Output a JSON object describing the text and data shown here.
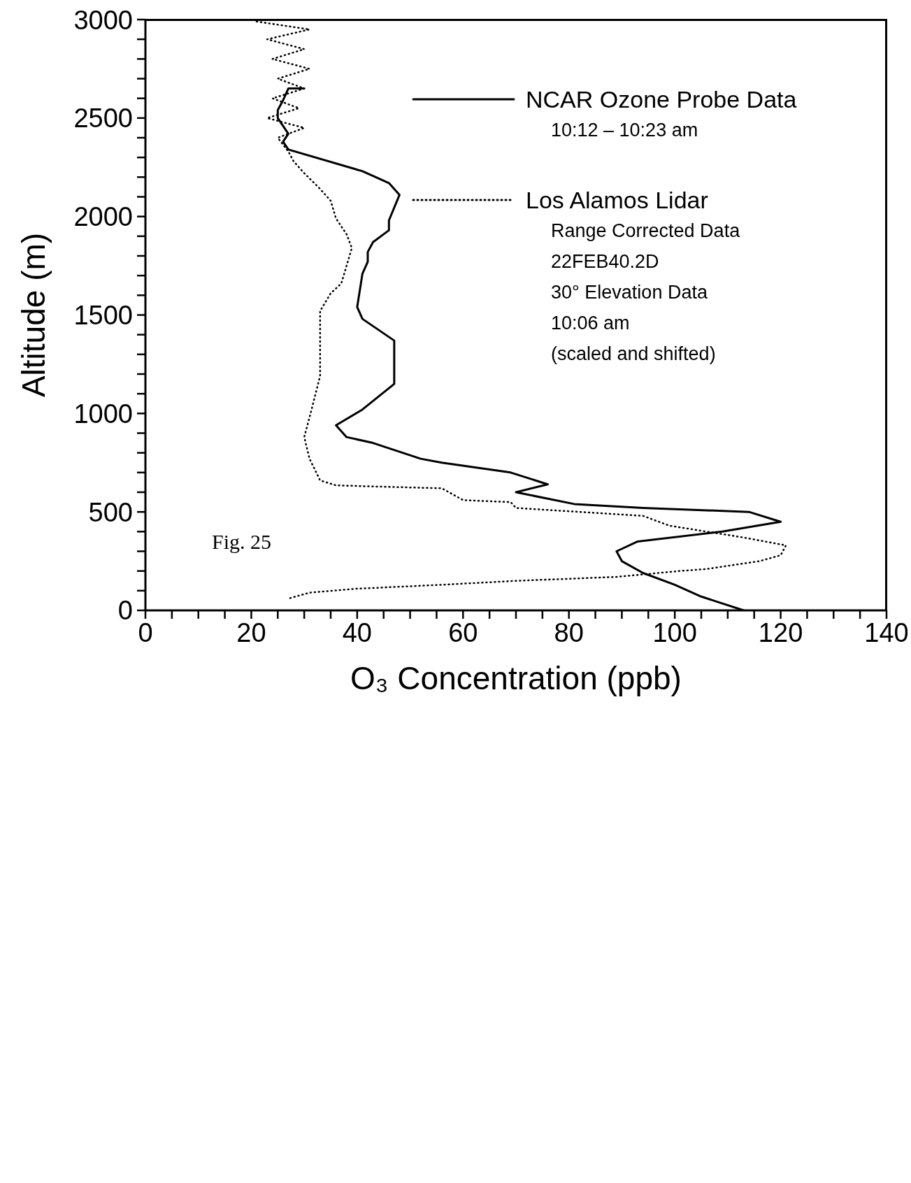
{
  "chart_data": {
    "type": "line",
    "xlabel": "O₃ Concentration (ppb)",
    "ylabel": "Altitude (m)",
    "xlim": [
      0,
      140
    ],
    "ylim": [
      0,
      3000
    ],
    "xticks": [
      0,
      {
        "value": 5,
        "label": null
      },
      {
        "value": 10,
        "label": null
      },
      {
        "value": 15,
        "label": null
      },
      20,
      {
        "value": 25,
        "label": null
      },
      {
        "value": 30,
        "label": null
      },
      {
        "value": 35,
        "label": null
      },
      40,
      {
        "value": 45,
        "label": null
      },
      {
        "value": 50,
        "label": null
      },
      {
        "value": 55,
        "label": null
      },
      60,
      {
        "value": 65,
        "label": null
      },
      {
        "value": 70,
        "label": null
      },
      {
        "value": 75,
        "label": null
      },
      80,
      {
        "value": 85,
        "label": null
      },
      {
        "value": 90,
        "label": null
      },
      {
        "value": 95,
        "label": null
      },
      100,
      {
        "value": 105,
        "label": null
      },
      {
        "value": 110,
        "label": null
      },
      {
        "value": 115,
        "label": null
      },
      120,
      {
        "value": 125,
        "label": null
      },
      {
        "value": 130,
        "label": null
      },
      {
        "value": 135,
        "label": null
      },
      140
    ],
    "yticks": [
      0,
      {
        "value": 100,
        "label": null
      },
      {
        "value": 200,
        "label": null
      },
      {
        "value": 300,
        "label": null
      },
      {
        "value": 400,
        "label": null
      },
      500,
      {
        "value": 600,
        "label": null
      },
      {
        "value": 700,
        "label": null
      },
      {
        "value": 800,
        "label": null
      },
      {
        "value": 900,
        "label": null
      },
      1000,
      {
        "value": 1100,
        "label": null
      },
      {
        "value": 1200,
        "label": null
      },
      {
        "value": 1300,
        "label": null
      },
      {
        "value": 1400,
        "label": null
      },
      1500,
      {
        "value": 1600,
        "label": null
      },
      {
        "value": 1700,
        "label": null
      },
      {
        "value": 1800,
        "label": null
      },
      {
        "value": 1900,
        "label": null
      },
      2000,
      {
        "value": 2100,
        "label": null
      },
      {
        "value": 2200,
        "label": null
      },
      {
        "value": 2300,
        "label": null
      },
      {
        "value": 2400,
        "label": null
      },
      2500,
      {
        "value": 2600,
        "label": null
      },
      {
        "value": 2700,
        "label": null
      },
      {
        "value": 2800,
        "label": null
      },
      {
        "value": 2900,
        "label": null
      },
      3000
    ],
    "legend": "top right",
    "series": [
      {
        "name": "NCAR Ozone Probe Data",
        "color": "#000000",
        "line_style": "solid",
        "x": [
          30,
          27,
          26,
          25,
          25,
          27,
          26,
          27,
          41,
          46,
          48,
          46,
          46,
          43,
          42,
          42,
          41,
          40,
          41,
          47,
          47,
          47,
          47,
          41,
          36,
          38,
          43,
          52,
          56,
          69,
          76,
          70,
          81,
          94,
          114,
          120,
          109,
          93,
          89,
          90,
          94,
          100,
          105,
          113
        ],
        "values": [
          2650,
          2650,
          2590,
          2540,
          2500,
          2420,
          2380,
          2340,
          2230,
          2170,
          2110,
          1980,
          1930,
          1870,
          1820,
          1770,
          1710,
          1540,
          1480,
          1370,
          1310,
          1240,
          1150,
          1020,
          940,
          880,
          850,
          770,
          750,
          700,
          640,
          600,
          540,
          520,
          500,
          450,
          400,
          350,
          300,
          250,
          190,
          130,
          70,
          0
        ]
      },
      {
        "name": "Los Alamos Lidar",
        "color": "#000000",
        "line_style": "dotted",
        "x": [
          21,
          31,
          23,
          30,
          24,
          31,
          25,
          30,
          24,
          29,
          23,
          30,
          25,
          27,
          28,
          30,
          33,
          35,
          36,
          38,
          39,
          38,
          37,
          35,
          33,
          33,
          33,
          31,
          30,
          31,
          33,
          36,
          42,
          56,
          60,
          69,
          70,
          94,
          99,
          106,
          113,
          121,
          120,
          116,
          106,
          101,
          89,
          70,
          56,
          40,
          31,
          27
        ],
        "values": [
          2990,
          2950,
          2900,
          2850,
          2800,
          2750,
          2700,
          2650,
          2600,
          2550,
          2500,
          2450,
          2400,
          2330,
          2280,
          2220,
          2140,
          2080,
          1990,
          1910,
          1840,
          1750,
          1660,
          1610,
          1520,
          1350,
          1190,
          980,
          880,
          770,
          660,
          635,
          630,
          620,
          560,
          550,
          520,
          480,
          430,
          400,
          370,
          330,
          280,
          250,
          210,
          200,
          170,
          150,
          130,
          110,
          90,
          60
        ]
      }
    ],
    "annotations": [
      "10:12 – 10:23 am",
      "Range Corrected Data",
      "22FEB40.2D",
      "30° Elevation Data",
      "10:06 am",
      "(scaled and shifted)",
      "Fig. 25"
    ]
  }
}
